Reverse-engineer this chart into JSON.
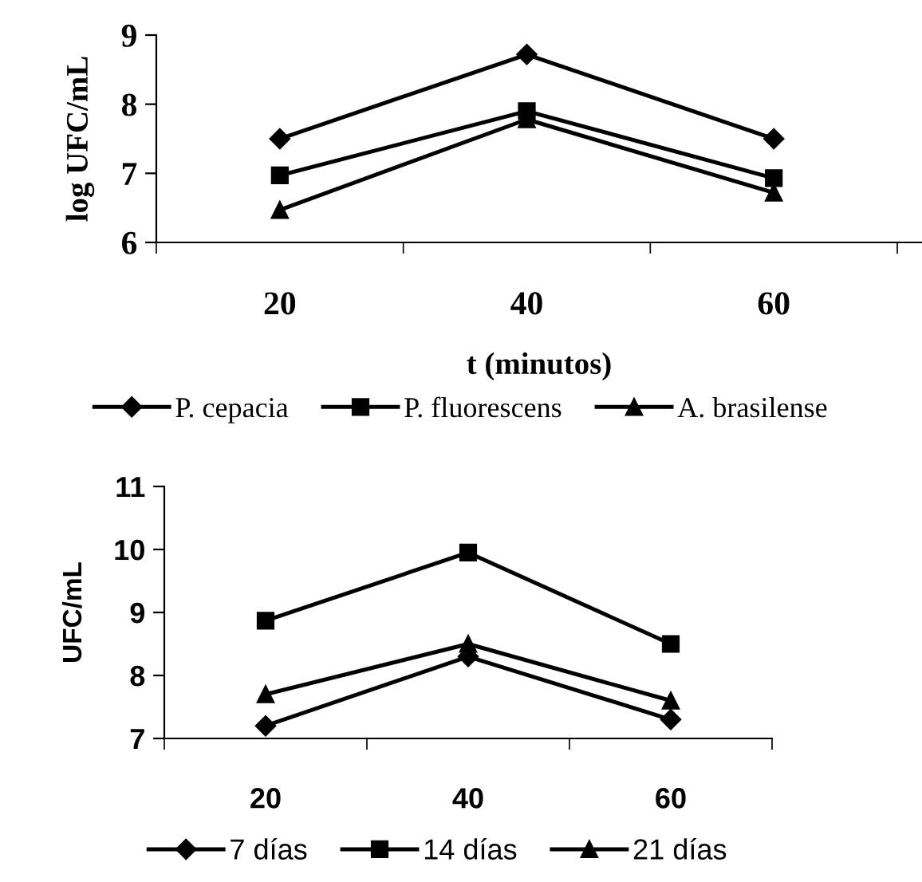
{
  "chart_data": [
    {
      "type": "line",
      "ylabel": "log UFC/mL",
      "xlabel": "t (minutos)",
      "categories": [
        "20",
        "40",
        "60"
      ],
      "ylim": [
        6,
        9
      ],
      "yticks": [
        6,
        7,
        8,
        9
      ],
      "legend": "bottom",
      "grid": false,
      "line_style": "solid",
      "series": [
        {
          "name": "P. cepacia",
          "color": "#000000",
          "marker": "diamond",
          "values": [
            7.5,
            8.72,
            7.5
          ]
        },
        {
          "name": "P. fluorescens",
          "color": "#000000",
          "marker": "square",
          "values": [
            6.97,
            7.9,
            6.93
          ]
        },
        {
          "name": "A. brasilense",
          "color": "#000000",
          "marker": "triangle",
          "values": [
            6.47,
            7.78,
            6.72
          ]
        }
      ]
    },
    {
      "type": "line",
      "ylabel": "UFC/mL",
      "categories": [
        "20",
        "40",
        "60"
      ],
      "ylim": [
        7,
        11
      ],
      "yticks": [
        7,
        8,
        9,
        10,
        11
      ],
      "legend": "bottom",
      "grid": false,
      "line_style": "solid",
      "series": [
        {
          "name": "7 días",
          "color": "#000000",
          "marker": "diamond",
          "values": [
            7.2,
            8.3,
            7.3
          ]
        },
        {
          "name": "14 días",
          "color": "#000000",
          "marker": "square",
          "values": [
            8.87,
            9.95,
            8.5
          ]
        },
        {
          "name": "21 días",
          "color": "#000000",
          "marker": "triangle",
          "values": [
            7.7,
            8.5,
            7.6
          ]
        }
      ]
    }
  ]
}
